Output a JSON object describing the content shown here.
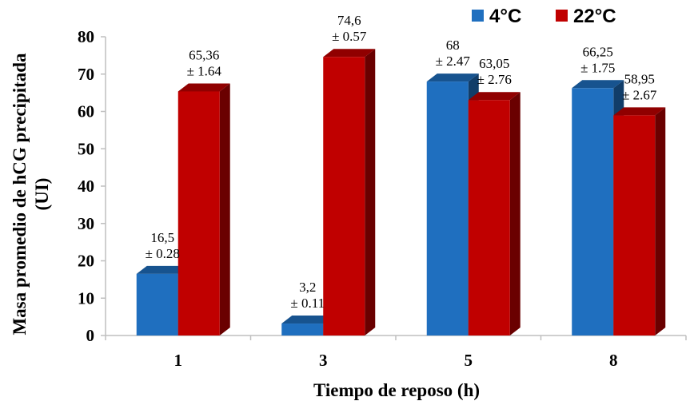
{
  "chart_data": {
    "type": "bar",
    "xlabel": "Tiempo de reposo (h)",
    "ylabel": "Masa promedio de hCG precipitada (UI)",
    "ylabel_lines": [
      "Masa promedio de hCG precipitada",
      "(UI)"
    ],
    "categories": [
      "1",
      "3",
      "5",
      "8"
    ],
    "ylim": [
      0,
      80
    ],
    "yticks": [
      "0",
      "10",
      "20",
      "30",
      "40",
      "50",
      "60",
      "70",
      "80"
    ],
    "grid": false,
    "legend_position": "top-right",
    "three_d": true,
    "series": [
      {
        "name": "4°C",
        "color": "#1f6fbf",
        "values": [
          16.5,
          3.2,
          68,
          66.25
        ],
        "value_labels": [
          "16,5",
          "3,2",
          "68",
          "66,25"
        ],
        "error_labels": [
          "± 0.28",
          "± 0.11",
          "± 2.47",
          "± 1.75"
        ]
      },
      {
        "name": "22°C",
        "color": "#c00000",
        "values": [
          65.36,
          74.6,
          63.05,
          58.95
        ],
        "value_labels": [
          "65,36",
          "74,6",
          "63,05",
          "58,95"
        ],
        "error_labels": [
          "± 1.64",
          "± 0.57",
          "± 2.76",
          "± 2.67"
        ]
      }
    ]
  }
}
